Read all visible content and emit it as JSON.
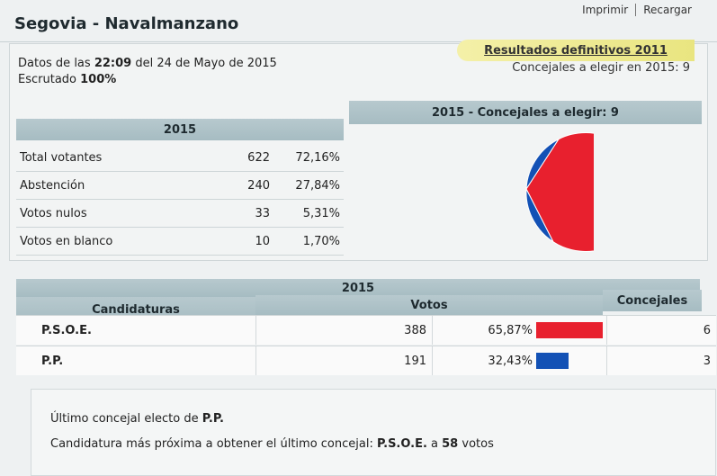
{
  "header": {
    "title": "Segovia - Navalmanzano",
    "links": [
      "Imprimir",
      "Recargar"
    ]
  },
  "info": {
    "datos_label": "Datos de las",
    "time": "22:09",
    "date_text": "del 24 de Mayo de 2015",
    "escrutado_label": "Escrutado",
    "escrutado_value": "100%"
  },
  "banner": {
    "resultados_link": "Resultados definitivos 2011",
    "concejales_text": "Concejales a elegir en 2015: 9"
  },
  "stats": {
    "header": "2015",
    "rows": [
      {
        "label": "Total votantes",
        "count": "622",
        "pct": "72,16%"
      },
      {
        "label": "Abstención",
        "count": "240",
        "pct": "27,84%"
      },
      {
        "label": "Votos nulos",
        "count": "33",
        "pct": "5,31%"
      },
      {
        "label": "Votos en blanco",
        "count": "10",
        "pct": "1,70%"
      }
    ]
  },
  "pie": {
    "header": "2015 - Concejales a elegir: 9",
    "slices": [
      {
        "name": "P.S.O.E.",
        "seats": 6,
        "color": "#e8202e"
      },
      {
        "name": "P.P.",
        "seats": 3,
        "color": "#1351b5"
      }
    ]
  },
  "results": {
    "year": "2015",
    "col_candidaturas": "Candidaturas",
    "col_votos": "Votos",
    "col_concejales": "Concejales",
    "rows": [
      {
        "party": "P.S.O.E.",
        "votes": "388",
        "pct": "65,87%",
        "seats": "6",
        "bar_fraction": 0.6587,
        "color": "#e8202e"
      },
      {
        "party": "P.P.",
        "votes": "191",
        "pct": "32,43%",
        "seats": "3",
        "bar_fraction": 0.3243,
        "color": "#1351b5"
      }
    ]
  },
  "notes": {
    "ultimo_prefix": "Último concejal electo de",
    "ultimo_party": "P.P.",
    "proxima_prefix": "Candidatura más próxima a obtener el último concejal:",
    "proxima_party": "P.S.O.E.",
    "proxima_a": "a",
    "proxima_votes": "58",
    "proxima_suffix": "votos"
  }
}
